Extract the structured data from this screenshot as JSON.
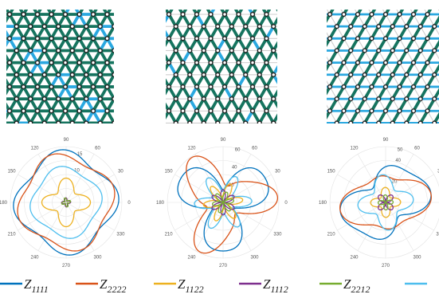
{
  "colors": {
    "Z1111": "#0072bd",
    "Z2222": "#d95319",
    "Z1122": "#edb120",
    "Z1112": "#7e2f8e",
    "Z2212": "#77ac30",
    "Z1212": "#4dbeee",
    "lattice_dark": "#15745f",
    "lattice_blue": "#2aa8e0",
    "lattice_grey": "#cfcfcf",
    "node": "#222222"
  },
  "legend": {
    "items": [
      {
        "key": "Z1111",
        "label_main": "Z",
        "label_sub": "1111"
      },
      {
        "key": "Z2222",
        "label_main": "Z",
        "label_sub": "2222"
      },
      {
        "key": "Z1122",
        "label_main": "Z",
        "label_sub": "1122"
      },
      {
        "key": "Z1112",
        "label_main": "Z",
        "label_sub": "1112"
      },
      {
        "key": "Z2212",
        "label_main": "Z",
        "label_sub": "2212"
      },
      {
        "key": "Z1212",
        "label_main": "",
        "label_sub": ""
      }
    ]
  },
  "lattices": [
    {
      "bond_weights": [
        1.0,
        1.0,
        1.0
      ],
      "bond_colors": [
        "lattice_dark",
        "lattice_dark",
        "lattice_dark"
      ],
      "blue_fraction": 0.15
    },
    {
      "bond_weights": [
        0.0,
        1.0,
        1.0
      ],
      "bond_colors": [
        "lattice_grey",
        "lattice_dark",
        "lattice_dark"
      ],
      "blue_fraction": 0.1
    },
    {
      "bond_weights": [
        0.6,
        0.0,
        1.0
      ],
      "bond_colors": [
        "lattice_blue",
        "lattice_grey",
        "lattice_dark"
      ],
      "blue_fraction": 0.0
    }
  ],
  "chart_data": [
    {
      "type": "polar",
      "angle_ticks": [
        "0",
        "30",
        "60",
        "90",
        "120",
        "150",
        "180",
        "210",
        "240",
        "270",
        "300",
        "330"
      ],
      "radial_ticks": [
        "10",
        "15"
      ],
      "rmax": 17,
      "series": [
        {
          "key": "Z1111",
          "r0": 14.5,
          "terms": [
            {
              "n": 4,
              "a": 1.6,
              "p": 0.4
            }
          ]
        },
        {
          "key": "Z2222",
          "r0": 13.8,
          "terms": [
            {
              "n": 4,
              "a": 1.4,
              "p": 1.2
            }
          ]
        },
        {
          "key": "Z1212",
          "r0": 10.2,
          "terms": [
            {
              "n": 4,
              "a": 0.9,
              "p": 0.8
            }
          ]
        },
        {
          "key": "Z1122",
          "r0": 5.6,
          "terms": [
            {
              "n": 4,
              "a": 1.8,
              "p": 0.0
            }
          ]
        },
        {
          "key": "Z1112",
          "r0": 0.9,
          "terms": [
            {
              "n": 4,
              "a": 0.5,
              "p": 0.3
            }
          ]
        },
        {
          "key": "Z2212",
          "r0": 0.9,
          "terms": [
            {
              "n": 4,
              "a": 0.5,
              "p": 1.1
            }
          ]
        }
      ]
    },
    {
      "type": "polar",
      "angle_ticks": [
        "0",
        "30",
        "60",
        "90",
        "120",
        "150",
        "180",
        "210",
        "240",
        "270",
        "300",
        "330"
      ],
      "radial_ticks": [
        "20",
        "40",
        "60"
      ],
      "rmax": 62,
      "series": [
        {
          "key": "Z1111",
          "r0": 38,
          "terms": [
            {
              "n": 3,
              "a": 20,
              "p": 1.57
            },
            {
              "n": 6,
              "a": 4,
              "p": 0
            }
          ]
        },
        {
          "key": "Z2222",
          "r0": 38,
          "terms": [
            {
              "n": 3,
              "a": 20,
              "p": 0.52
            },
            {
              "n": 6,
              "a": 4,
              "p": 0
            }
          ]
        },
        {
          "key": "Z1212",
          "r0": 22,
          "terms": [
            {
              "n": 6,
              "a": 10,
              "p": 0.3
            }
          ]
        },
        {
          "key": "Z1122",
          "r0": 14,
          "terms": [
            {
              "n": 6,
              "a": 8,
              "p": 0.8
            }
          ]
        },
        {
          "key": "Z1112",
          "r0": 0,
          "abs": true,
          "terms": [
            {
              "n": 3,
              "a": 14,
              "p": 1.57
            }
          ]
        },
        {
          "key": "Z2212",
          "r0": 0,
          "abs": true,
          "terms": [
            {
              "n": 3,
              "a": 12,
              "p": 0.52
            }
          ]
        }
      ]
    },
    {
      "type": "polar",
      "angle_ticks": [
        "0",
        "30",
        "60",
        "90",
        "120",
        "150",
        "180",
        "210",
        "240",
        "270",
        "300",
        "330"
      ],
      "radial_ticks": [
        "20",
        "40",
        "50"
      ],
      "rmax": 52,
      "series": [
        {
          "key": "Z1111",
          "r0": 32,
          "terms": [
            {
              "n": 2,
              "a": 10,
              "p": 1.2
            },
            {
              "n": 4,
              "a": 5,
              "p": 0.2
            }
          ]
        },
        {
          "key": "Z2222",
          "r0": 30,
          "terms": [
            {
              "n": 2,
              "a": 9,
              "p": 0.3
            },
            {
              "n": 4,
              "a": 4,
              "p": 0.7
            }
          ]
        },
        {
          "key": "Z1212",
          "r0": 20,
          "terms": [
            {
              "n": 4,
              "a": 6,
              "p": 0.5
            }
          ]
        },
        {
          "key": "Z1122",
          "r0": 10,
          "terms": [
            {
              "n": 4,
              "a": 4,
              "p": 0.1
            }
          ]
        },
        {
          "key": "Z1112",
          "r0": 0,
          "abs": true,
          "terms": [
            {
              "n": 2,
              "a": 9,
              "p": 1.57
            }
          ]
        },
        {
          "key": "Z2212",
          "r0": 0,
          "abs": true,
          "terms": [
            {
              "n": 2,
              "a": 7,
              "p": 0.1
            }
          ]
        }
      ]
    }
  ]
}
